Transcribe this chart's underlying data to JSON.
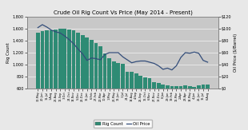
{
  "title": "Crude Oil Rig Count Vs Price (May 2014 - Present)",
  "ylabel_left": "Rig Count",
  "ylabel_right": "Oil Price ($/Barrel)",
  "plot_bg_color": "#c8c8c8",
  "fig_bg_color": "#e8e8e8",
  "bar_color": "#2e8b74",
  "line_color": "#334d7a",
  "x_labels": [
    "30-May",
    "20-Jun",
    "11-Jul",
    "1-Aug",
    "22-Aug",
    "12-Sep",
    "3-Oct",
    "24-Oct",
    "14-Nov",
    "5-Dec",
    "26-Dec",
    "16-Jan",
    "6-Feb",
    "27-Feb",
    "20-Mar",
    "10-Apr",
    "1-May",
    "22-May",
    "12-Jun",
    "3-Jul",
    "24-Jul",
    "14-Aug",
    "4-Sep",
    "25-Sep",
    "16-Oct",
    "6-Nov",
    "27-Nov",
    "18-Dec",
    "8-Jan",
    "29-Jan",
    "19-Feb",
    "12-Mar",
    "2-Apr",
    "23-Apr",
    "14-May",
    "4-Jun",
    "25-Jun",
    "16-Jul",
    "6-Aug"
  ],
  "rig_count": [
    1531,
    1562,
    1575,
    1575,
    1592,
    1597,
    1597,
    1590,
    1575,
    1536,
    1499,
    1456,
    1421,
    1358,
    1310,
    1192,
    1104,
    1058,
    1031,
    1007,
    873,
    878,
    857,
    809,
    781,
    768,
    709,
    698,
    664,
    650,
    640,
    634,
    635,
    650,
    640,
    630,
    648,
    660,
    670
  ],
  "oil_price": [
    102,
    107,
    103,
    98,
    95,
    93,
    88,
    82,
    75,
    66,
    58,
    47,
    51,
    50,
    48,
    57,
    60,
    60,
    60,
    53,
    48,
    43,
    45,
    46,
    46,
    44,
    42,
    38,
    32,
    34,
    31,
    38,
    52,
    60,
    59,
    61,
    59,
    47,
    44
  ],
  "ylim_left": [
    600,
    1800
  ],
  "ylim_right": [
    0,
    120
  ],
  "yticks_left": [
    600,
    800,
    1000,
    1200,
    1400,
    1600,
    1800
  ],
  "yticks_right": [
    0,
    20,
    40,
    60,
    80,
    100,
    120
  ]
}
